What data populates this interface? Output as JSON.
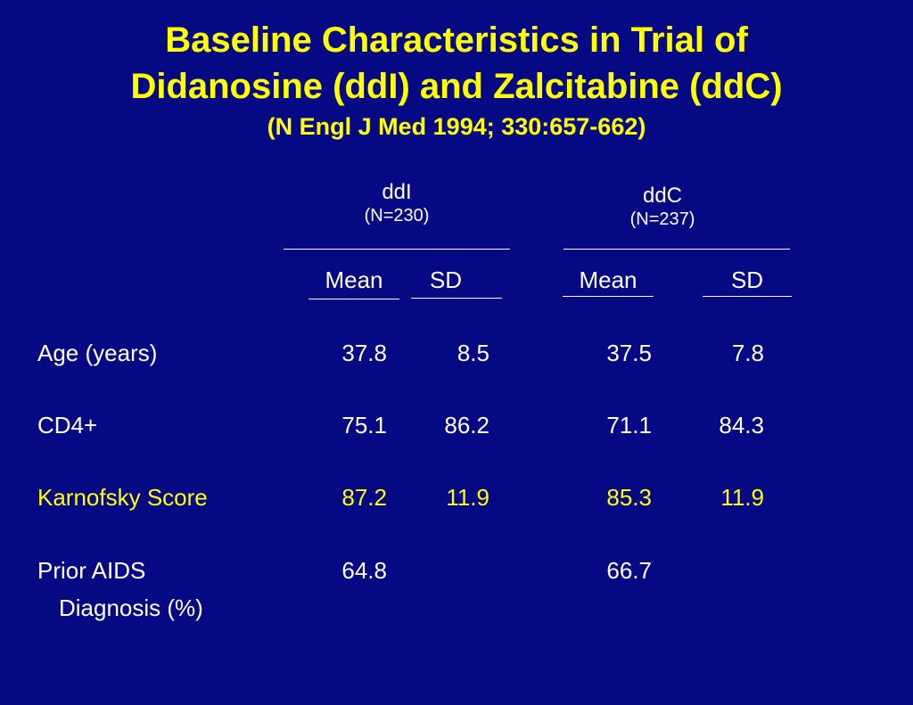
{
  "title": {
    "line1": "Baseline Characteristics in Trial of",
    "line2": "Didanosine (ddI) and Zalcitabine (ddC)",
    "citation": "(N Engl J Med 1994; 330:657-662)"
  },
  "groups": [
    {
      "name": "ddI",
      "n": "(N=230)"
    },
    {
      "name": "ddC",
      "n": "(N=237)"
    }
  ],
  "columns": {
    "mean": "Mean",
    "sd": "SD"
  },
  "rows": [
    {
      "label": "Age (years)",
      "ddi_mean": "37.8",
      "ddi_sd": "8.5",
      "ddc_mean": "37.5",
      "ddc_sd": "7.8"
    },
    {
      "label": "CD4+",
      "ddi_mean": "75.1",
      "ddi_sd": "86.2",
      "ddc_mean": "71.1",
      "ddc_sd": "84.3"
    },
    {
      "label": "Karnofsky Score",
      "ddi_mean": "87.2",
      "ddi_sd": "11.9",
      "ddc_mean": "85.3",
      "ddc_sd": "11.9"
    },
    {
      "label": "Prior AIDS",
      "label_cont": "Diagnosis (%)",
      "ddi_mean": "64.8",
      "ddi_sd": "",
      "ddc_mean": "66.7",
      "ddc_sd": ""
    }
  ],
  "colors": {
    "background": "#050A84",
    "title": "#FFFF00",
    "text": "#FFFFFF",
    "highlight_row": "#FFFF00"
  }
}
